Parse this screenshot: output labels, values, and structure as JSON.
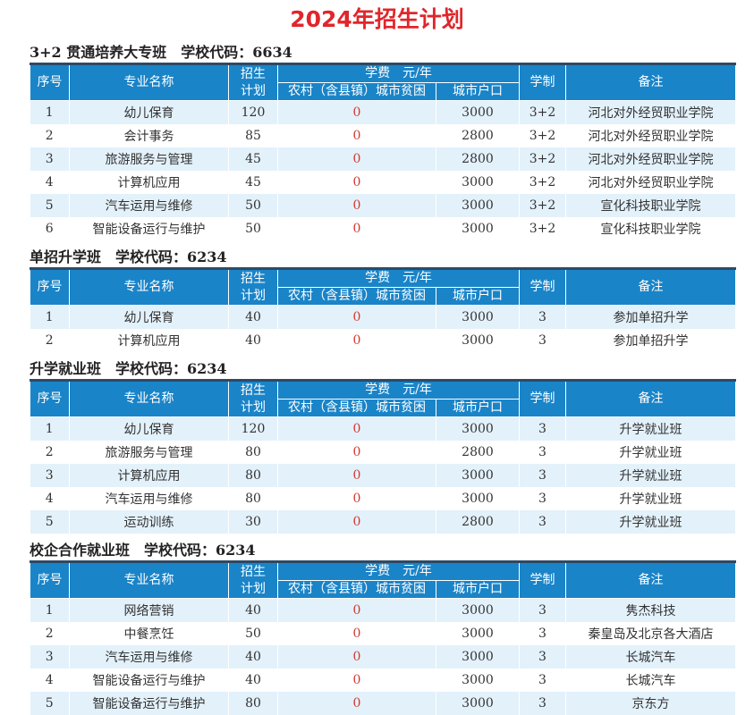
{
  "title": "2024年招生计划",
  "header": {
    "seq": "序号",
    "major": "专业名称",
    "plan_top": "招生",
    "plan_bottom": "计划",
    "fee": "学费　元/年",
    "rural": "农村（含县镇）城市贫困",
    "urban": "城市户口",
    "years": "学制",
    "note": "备注"
  },
  "sections": [
    {
      "label": "3+2 贯通培养大专班　学校代码：6634",
      "rows": [
        [
          "1",
          "幼儿保育",
          "120",
          "0",
          "3000",
          "3+2",
          "河北对外经贸职业学院"
        ],
        [
          "2",
          "会计事务",
          "85",
          "0",
          "2800",
          "3+2",
          "河北对外经贸职业学院"
        ],
        [
          "3",
          "旅游服务与管理",
          "45",
          "0",
          "2800",
          "3+2",
          "河北对外经贸职业学院"
        ],
        [
          "4",
          "计算机应用",
          "45",
          "0",
          "3000",
          "3+2",
          "河北对外经贸职业学院"
        ],
        [
          "5",
          "汽车运用与维修",
          "50",
          "0",
          "3000",
          "3+2",
          "宣化科技职业学院"
        ],
        [
          "6",
          "智能设备运行与维护",
          "50",
          "0",
          "3000",
          "3+2",
          "宣化科技职业学院"
        ]
      ]
    },
    {
      "label": "单招升学班　学校代码：6234",
      "rows": [
        [
          "1",
          "幼儿保育",
          "40",
          "0",
          "3000",
          "3",
          "参加单招升学"
        ],
        [
          "2",
          "计算机应用",
          "40",
          "0",
          "3000",
          "3",
          "参加单招升学"
        ]
      ]
    },
    {
      "label": "升学就业班　学校代码：6234",
      "rows": [
        [
          "1",
          "幼儿保育",
          "120",
          "0",
          "3000",
          "3",
          "升学就业班"
        ],
        [
          "2",
          "旅游服务与管理",
          "80",
          "0",
          "2800",
          "3",
          "升学就业班"
        ],
        [
          "3",
          "计算机应用",
          "80",
          "0",
          "3000",
          "3",
          "升学就业班"
        ],
        [
          "4",
          "汽车运用与维修",
          "80",
          "0",
          "3000",
          "3",
          "升学就业班"
        ],
        [
          "5",
          "运动训练",
          "30",
          "0",
          "2800",
          "3",
          "升学就业班"
        ]
      ]
    },
    {
      "label": "校企合作就业班　学校代码：6234",
      "rows": [
        [
          "1",
          "网络营销",
          "40",
          "0",
          "3000",
          "3",
          "隽杰科技"
        ],
        [
          "2",
          "中餐烹饪",
          "50",
          "0",
          "3000",
          "3",
          "秦皇岛及北京各大酒店"
        ],
        [
          "3",
          "汽车运用与维修",
          "40",
          "0",
          "3000",
          "3",
          "长城汽车"
        ],
        [
          "4",
          "智能设备运行与维护",
          "40",
          "0",
          "3000",
          "3",
          "长城汽车"
        ],
        [
          "5",
          "智能设备运行与维护",
          "80",
          "0",
          "3000",
          "3",
          "京东方"
        ]
      ]
    }
  ]
}
